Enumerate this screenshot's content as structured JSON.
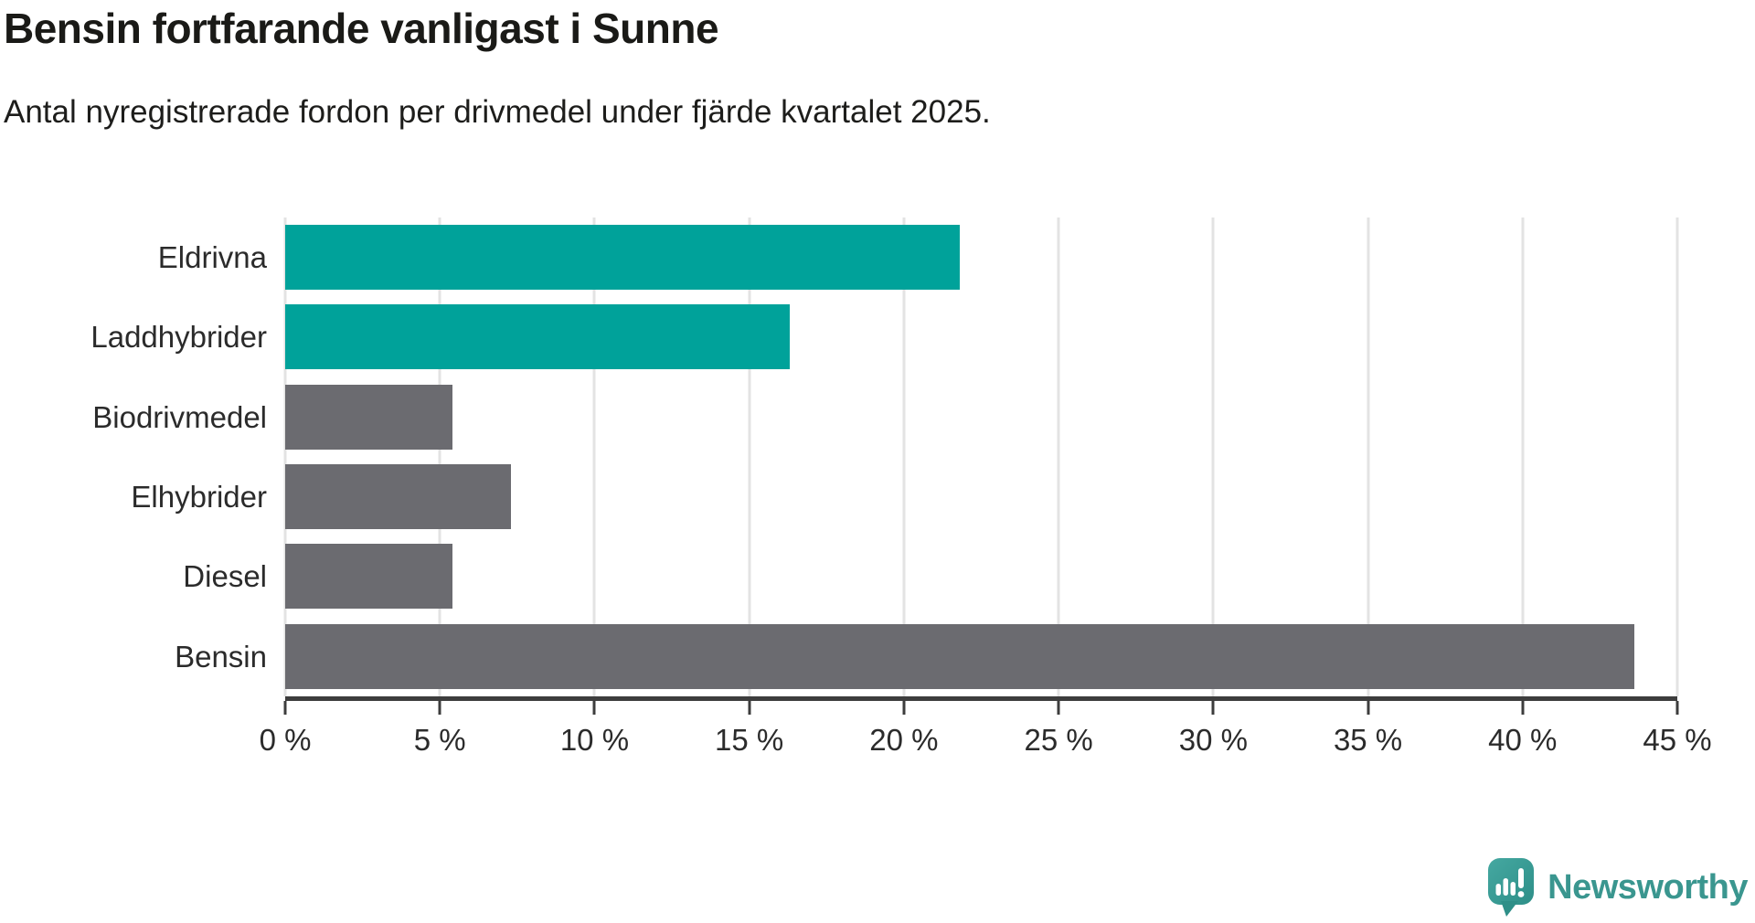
{
  "header": {
    "title": "Bensin fortfarande vanligast i Sunne",
    "subtitle": "Antal nyregistrerade fordon per drivmedel under fjärde kvartalet 2025."
  },
  "chart_data": {
    "type": "bar",
    "orientation": "horizontal",
    "title": "Bensin fortfarande vanligast i Sunne",
    "subtitle": "Antal nyregistrerade fordon per drivmedel under fjärde kvartalet 2025.",
    "categories": [
      "Eldrivna",
      "Laddhybrider",
      "Biodrivmedel",
      "Elhybrider",
      "Diesel",
      "Bensin"
    ],
    "values": [
      21.8,
      16.3,
      5.4,
      7.3,
      5.4,
      43.6
    ],
    "bar_colors": [
      "#00a29a",
      "#00a29a",
      "#6b6b70",
      "#6b6b70",
      "#6b6b70",
      "#6b6b70"
    ],
    "xlabel": "",
    "ylabel": "",
    "xlim": [
      0,
      45
    ],
    "x_ticks": [
      0,
      5,
      10,
      15,
      20,
      25,
      30,
      35,
      40,
      45
    ],
    "x_tick_suffix": " %",
    "grid": true,
    "legend": false
  },
  "colors": {
    "accent_teal": "#00a29a",
    "bar_gray": "#6b6b70",
    "gridline": "#e3e3e3",
    "axis_line": "#3d3d3d",
    "text": "#1d1d1b",
    "brand_teal": "#3a968f"
  },
  "footer": {
    "brand": "Newsworthy",
    "logo_icon": "newsworthy-speech-bubble-chart-icon"
  }
}
